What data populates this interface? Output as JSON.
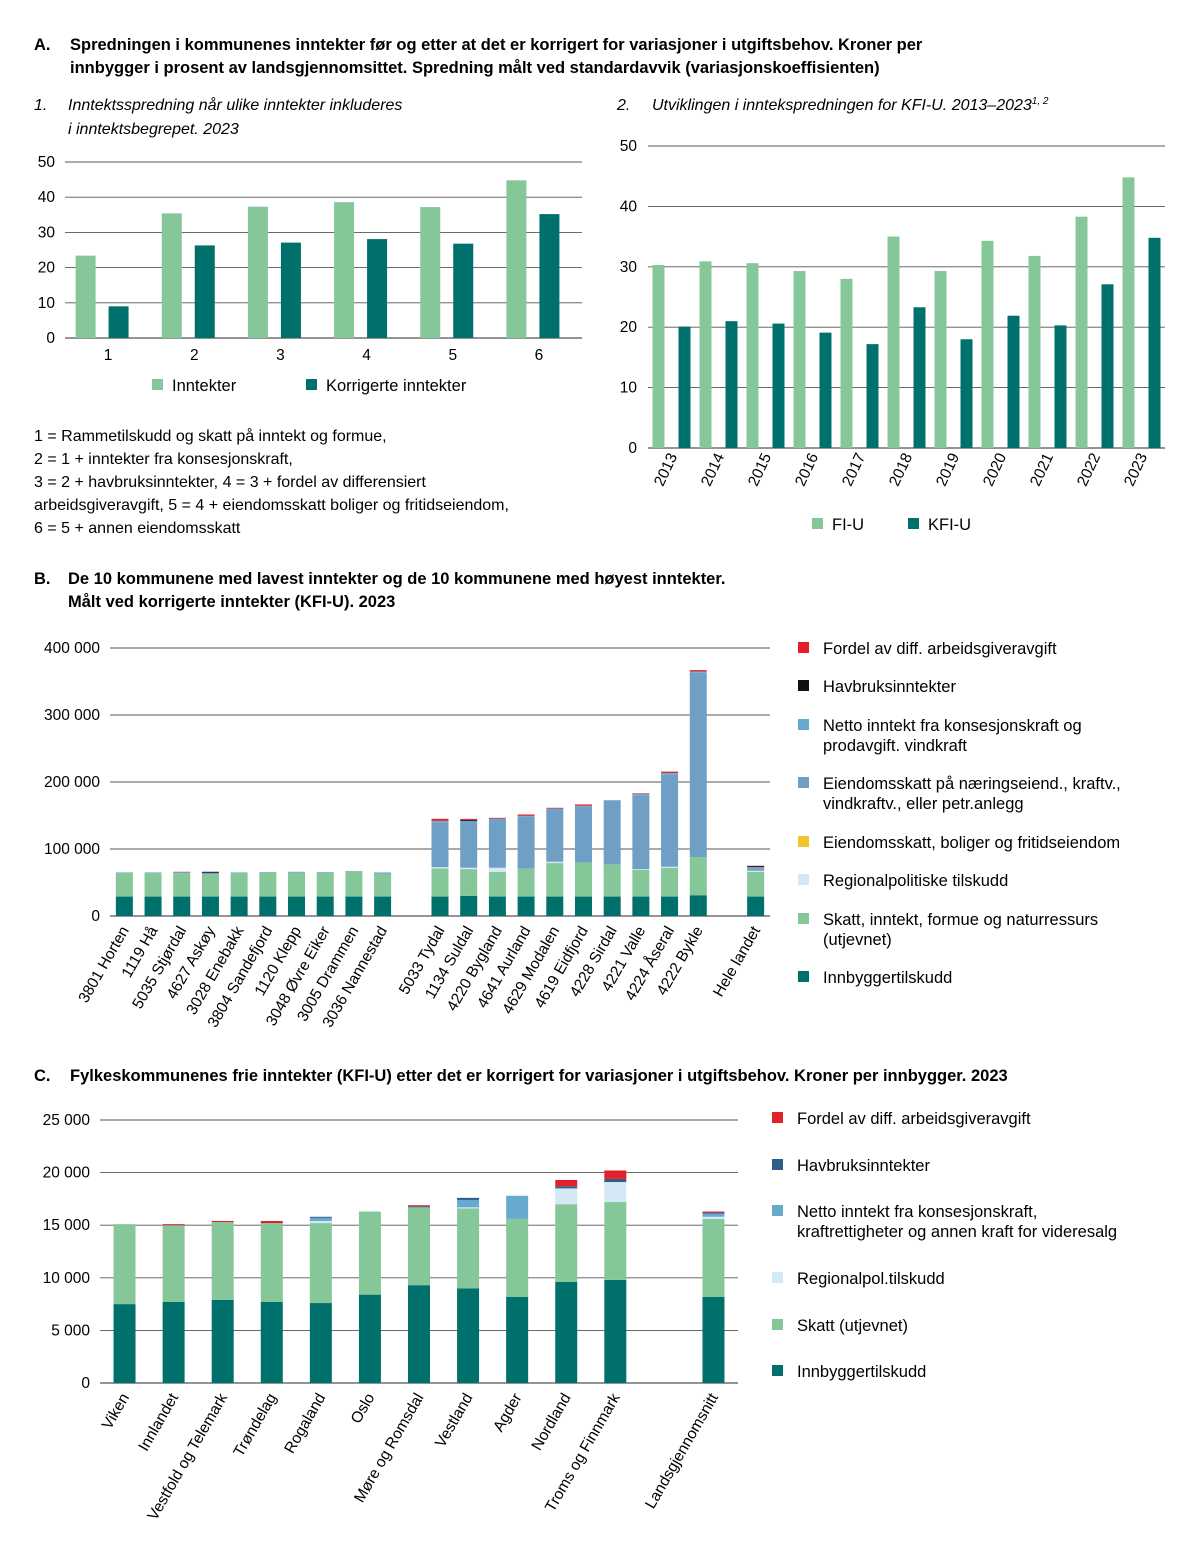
{
  "colors": {
    "light": "#86c799",
    "dark": "#00706c",
    "red": "#e3202a",
    "black": "#111111",
    "netto": "#67aacd",
    "eiend_naering": "#6f9fc4",
    "eiend_bolig": "#f2c52b",
    "regional": "#d5e8f6",
    "havbruk_c": "#2e5f89",
    "grid": "#555555"
  },
  "panelA": {
    "letter": "A.",
    "title_line1": "Spredningen i kommunenes inntekter før og etter at det er korrigert for variasjoner i utgiftsbehov. Kroner per",
    "title_line2": "innbygger i prosent av landsgjennomsittet. Spredning målt ved standardavvik (variasjonskoeffisienten)",
    "notes": [
      "1 = Rammetilskudd og skatt på inntekt og formue,",
      "2 = 1 + inntekter fra konsesjonskraft,",
      "3 = 2 + havbruksinntekter, 4 = 3 + fordel av differensiert",
      "arbeidsgiveravgift, 5 = 4 + eiendomsskatt boliger og fritidseiendom,",
      "6 = 5 + annen eiendomsskatt"
    ]
  },
  "chart_data": [
    {
      "id": "A1",
      "type": "bar",
      "number": "1.",
      "title_line1": "Inntektsspredning når ulike inntekter inkluderes",
      "title_line2": "i inntektsbegrepet. 2023",
      "categories": [
        "1",
        "2",
        "3",
        "4",
        "5",
        "6"
      ],
      "series": [
        {
          "name": "Inntekter",
          "color": "#86c799",
          "values": [
            23.4,
            35.4,
            37.3,
            38.6,
            37.2,
            44.8
          ]
        },
        {
          "name": "Korrigerte inntekter",
          "color": "#00706c",
          "values": [
            9.0,
            26.3,
            27.1,
            28.1,
            26.8,
            35.2
          ]
        }
      ],
      "ylim": [
        0,
        50
      ],
      "yticks": [
        "0",
        "10",
        "20",
        "30",
        "40",
        "50"
      ],
      "legend": "bottom"
    },
    {
      "id": "A2",
      "type": "bar",
      "number": "2.",
      "title": "Utviklingen i inntekspredningen for KFI-U. 2013–2023",
      "title_sup": "1, 2",
      "categories": [
        "2013",
        "2014",
        "2015",
        "2016",
        "2017",
        "2018",
        "2019",
        "2020",
        "2021",
        "2022",
        "2023"
      ],
      "series": [
        {
          "name": "FI-U",
          "color": "#86c799",
          "values": [
            30.3,
            30.9,
            30.6,
            29.3,
            28.0,
            35.0,
            29.3,
            34.3,
            31.8,
            38.3,
            44.8
          ]
        },
        {
          "name": "KFI-U",
          "color": "#00706c",
          "values": [
            20.1,
            21.0,
            20.6,
            19.1,
            17.2,
            23.3,
            18.0,
            21.9,
            20.3,
            27.1,
            34.8
          ]
        }
      ],
      "ylim": [
        0,
        50
      ],
      "yticks": [
        "0",
        "10",
        "20",
        "30",
        "40",
        "50"
      ],
      "legend": "bottom"
    },
    {
      "id": "B",
      "type": "bar",
      "stacked": true,
      "letter": "B.",
      "title_line1": "De 10 kommunene med lavest inntekter og de 10 kommunene med høyest inntekter.",
      "title_line2": "Målt ved korrigerte inntekter (KFI-U). 2023",
      "categories": [
        "3801 Horten",
        "1119 Hå",
        "5035 Stjørdal",
        "4627 Askøy",
        "3028 Enebakk",
        "3804 Sandefjord",
        "1120 Klepp",
        "3048 Øvre Eiker",
        "3005 Drammen",
        "3036 Nannestad",
        "",
        "5033 Tydal",
        "1134 Suldal",
        "4220 Bygland",
        "4641 Aurland",
        "4629 Modalen",
        "4619 Eidfjord",
        "4228 Sirdal",
        "4221 Valle",
        "4224 Åseral",
        "4222 Bykle",
        "",
        "Hele landet"
      ],
      "series": [
        {
          "name": "Innbyggertilskudd",
          "color": "#00706c",
          "values": [
            29000,
            29000,
            29000,
            29000,
            29000,
            29000,
            29000,
            29000,
            29000,
            29000,
            0,
            29000,
            30000,
            29000,
            29000,
            29000,
            29000,
            29000,
            29000,
            29000,
            31000,
            0,
            29000
          ]
        },
        {
          "name": "Skatt, inntekt, formue og naturressurs (utjevnet)",
          "color": "#86c799",
          "values": [
            35000,
            35000,
            35000,
            33500,
            35000,
            35500,
            36000,
            35500,
            37000,
            34000,
            0,
            42000,
            40000,
            37000,
            42000,
            50000,
            51000,
            48000,
            40000,
            43000,
            57000,
            0,
            37000
          ]
        },
        {
          "name": "Regionalpolitiske tilskudd",
          "color": "#d5e8f6",
          "values": [
            0,
            0,
            0,
            0,
            0,
            0,
            0,
            0,
            0,
            0,
            0,
            2000,
            2000,
            6000,
            0,
            2000,
            0,
            0,
            1000,
            1500,
            0,
            0,
            1500
          ]
        },
        {
          "name": "Eiendomsskatt, boliger og fritidseiendom",
          "color": "#f2c52b",
          "values": [
            0,
            0,
            0,
            0,
            0,
            0,
            0,
            0,
            0,
            0,
            0,
            0,
            0,
            0,
            0,
            0,
            0,
            0,
            0,
            0,
            0,
            0,
            0
          ]
        },
        {
          "name": "Eiendomsskatt på næringseiend., kraftv., vindkraftv., eller petr.anlegg",
          "color": "#6f9fc4",
          "values": [
            1000,
            1000,
            1500,
            2000,
            1000,
            1000,
            1000,
            1000,
            1000,
            2000,
            0,
            66000,
            70000,
            72000,
            77000,
            78000,
            83000,
            95000,
            110000,
            138000,
            275000,
            0,
            4000
          ]
        },
        {
          "name": "Netto inntekt fra konsesjonskraft og prodavgift. vindkraft",
          "color": "#67aacd",
          "values": [
            0,
            0,
            0,
            0,
            0,
            0,
            0,
            0,
            0,
            0,
            0,
            3000,
            0,
            1500,
            1500,
            1500,
            1500,
            1000,
            2000,
            2000,
            2000,
            0,
            1500
          ]
        },
        {
          "name": "Havbruksinntekter",
          "color": "#111111",
          "values": [
            0,
            0,
            0,
            1500,
            0,
            0,
            0,
            0,
            0,
            0,
            0,
            0,
            1500,
            0,
            0,
            0,
            0,
            0,
            0,
            0,
            0,
            0,
            1500
          ]
        },
        {
          "name": "Fordel av diff. arbeidsgiveravgift",
          "color": "#e3202a",
          "values": [
            0,
            0,
            500,
            0,
            0,
            0,
            0,
            0,
            0,
            0,
            0,
            3000,
            1500,
            1000,
            2000,
            1000,
            2000,
            0,
            1000,
            2000,
            2000,
            0,
            500
          ]
        }
      ],
      "ylim": [
        0,
        400000
      ],
      "yticks": [
        "0",
        "100 000",
        "200 000",
        "300 000",
        "400 000"
      ],
      "legend": "right"
    },
    {
      "id": "C",
      "type": "bar",
      "stacked": true,
      "letter": "C.",
      "title": "Fylkeskommunenes frie inntekter (KFI-U) etter det er korrigert for variasjoner i utgiftsbehov.  Kroner per innbygger. 2023",
      "categories": [
        "Viken",
        "Innlandet",
        "Vestfold og Telemark",
        "Trøndelag",
        "Rogaland",
        "Oslo",
        "Møre og Romsdal",
        "Vestland",
        "Agder",
        "Nordland",
        "Troms og Finnmark",
        "",
        "Landsgjennomsnitt"
      ],
      "series": [
        {
          "name": "Innbyggertilskudd",
          "color": "#00706c",
          "values": [
            7500,
            7700,
            7900,
            7700,
            7600,
            8400,
            9300,
            9000,
            8200,
            9600,
            9800,
            0,
            8200
          ]
        },
        {
          "name": "Skatt (utjevnet)",
          "color": "#86c799",
          "values": [
            7600,
            7300,
            7400,
            7500,
            7600,
            7900,
            7400,
            7600,
            7400,
            7400,
            7400,
            0,
            7400
          ]
        },
        {
          "name": "Regionalpol.tilskudd",
          "color": "#d5e8f6",
          "values": [
            0,
            0,
            0,
            0,
            200,
            0,
            0,
            100,
            0,
            1500,
            1900,
            0,
            200
          ]
        },
        {
          "name": "Netto inntekt fra konsesjonskraft, kraftrettigheter og annen kraft for videresalg",
          "color": "#67aacd",
          "values": [
            0,
            0,
            0,
            0,
            300,
            0,
            0,
            700,
            2200,
            0,
            0,
            0,
            300
          ]
        },
        {
          "name": "Havbruksinntekter",
          "color": "#2e5f89",
          "values": [
            0,
            0,
            0,
            0,
            100,
            0,
            100,
            200,
            0,
            200,
            300,
            0,
            100
          ]
        },
        {
          "name": "Fordel av diff. arbeidsgiveravgift",
          "color": "#e3202a",
          "values": [
            0,
            100,
            100,
            200,
            0,
            0,
            100,
            0,
            0,
            600,
            800,
            0,
            100
          ]
        }
      ],
      "ylim": [
        0,
        25000
      ],
      "yticks": [
        "0",
        "5 000",
        "10 000",
        "15 000",
        "20 000",
        "25 000"
      ],
      "legend": "right"
    }
  ]
}
